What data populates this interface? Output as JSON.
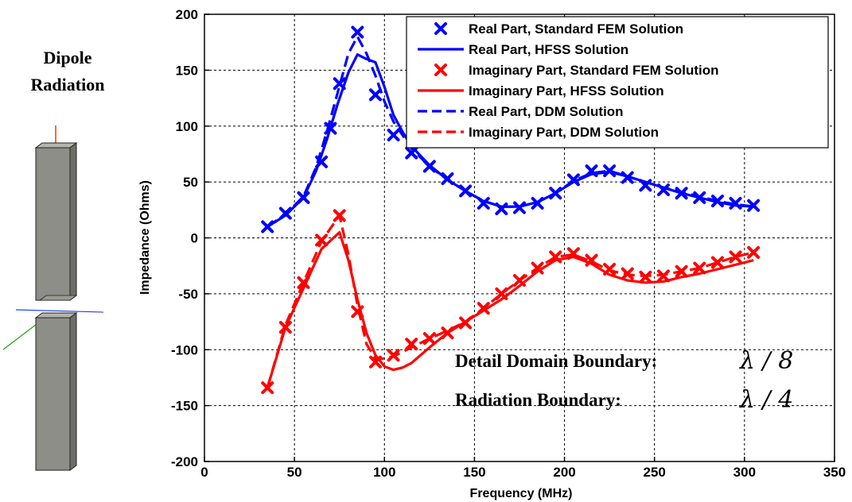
{
  "side_panel": {
    "title_line1": "Dipole",
    "title_line2": "Radiation"
  },
  "annotations": {
    "detail_label": "Detail Domain Boundary:",
    "detail_value": "λ / 8",
    "radiation_label": "Radiation Boundary:",
    "radiation_value": "λ / 4"
  },
  "chart_data": {
    "type": "line",
    "title": "",
    "xlabel": "Frequency (MHz)",
    "ylabel": "Impedance (Ohms)",
    "xlim": [
      0,
      350
    ],
    "ylim": [
      -200,
      200
    ],
    "xticks": [
      0,
      50,
      100,
      150,
      200,
      250,
      300,
      350
    ],
    "yticks": [
      -200,
      -150,
      -100,
      -50,
      0,
      50,
      100,
      150,
      200
    ],
    "grid": true,
    "legend_position": "top-right",
    "series": [
      {
        "name": "Real Part, Standard FEM Solution",
        "color": "#0000ff",
        "style": "markers",
        "marker": "x",
        "x": [
          35,
          45,
          55,
          65,
          70,
          75,
          85,
          95,
          105,
          115,
          125,
          135,
          145,
          155,
          165,
          175,
          185,
          195,
          205,
          215,
          225,
          235,
          245,
          255,
          265,
          275,
          285,
          295,
          305
        ],
        "y": [
          10,
          22,
          36,
          68,
          98,
          138,
          184,
          128,
          92,
          76,
          64,
          53,
          42,
          31,
          26,
          27,
          31,
          40,
          52,
          60,
          60,
          54,
          47,
          43,
          40,
          36,
          33,
          31,
          29
        ]
      },
      {
        "name": "Real Part, HFSS Solution",
        "color": "#0000ff",
        "style": "solid",
        "x": [
          35,
          45,
          55,
          62,
          68,
          74,
          80,
          85,
          90,
          95,
          100,
          105,
          110,
          115,
          125,
          135,
          145,
          155,
          165,
          175,
          185,
          195,
          205,
          215,
          225,
          235,
          245,
          255,
          265,
          275,
          285,
          295,
          305
        ],
        "y": [
          10,
          20,
          36,
          60,
          88,
          120,
          148,
          164,
          160,
          157,
          135,
          110,
          95,
          82,
          65,
          52,
          42,
          33,
          28,
          28,
          32,
          40,
          50,
          57,
          59,
          55,
          50,
          45,
          40,
          36,
          32,
          29,
          28
        ]
      },
      {
        "name": "Imaginary Part, Standard FEM Solution",
        "color": "#ff0000",
        "style": "markers",
        "marker": "x",
        "x": [
          35,
          45,
          55,
          65,
          75,
          85,
          95,
          105,
          115,
          125,
          135,
          145,
          155,
          165,
          175,
          185,
          195,
          205,
          215,
          225,
          235,
          245,
          255,
          265,
          275,
          285,
          295,
          305
        ],
        "y": [
          -134,
          -80,
          -40,
          -2,
          20,
          -66,
          -111,
          -105,
          -95,
          -90,
          -85,
          -76,
          -63,
          -50,
          -38,
          -27,
          -17,
          -14,
          -20,
          -28,
          -32,
          -35,
          -34,
          -30,
          -27,
          -22,
          -17,
          -13
        ]
      },
      {
        "name": "Imaginary Part, HFSS Solution",
        "color": "#ff0000",
        "style": "solid",
        "x": [
          35,
          45,
          55,
          65,
          75,
          80,
          85,
          90,
          95,
          100,
          105,
          110,
          115,
          125,
          135,
          145,
          155,
          165,
          175,
          185,
          195,
          205,
          215,
          225,
          235,
          245,
          255,
          265,
          275,
          285,
          295,
          305
        ],
        "y": [
          -134,
          -80,
          -45,
          -10,
          5,
          -20,
          -55,
          -85,
          -105,
          -115,
          -118,
          -116,
          -112,
          -98,
          -85,
          -75,
          -65,
          -55,
          -43,
          -30,
          -20,
          -17,
          -23,
          -33,
          -38,
          -40,
          -39,
          -35,
          -32,
          -28,
          -24,
          -20
        ]
      },
      {
        "name": "Real Part, DDM Solution",
        "color": "#0000ff",
        "style": "dashed",
        "x": [
          35,
          45,
          55,
          62,
          68,
          74,
          80,
          85,
          90,
          95,
          100,
          105,
          110,
          115,
          125,
          135,
          145,
          155,
          165,
          175,
          185,
          195,
          205,
          215,
          225,
          235,
          245,
          255,
          265,
          275,
          285,
          295,
          305
        ],
        "y": [
          10,
          21,
          37,
          63,
          95,
          130,
          165,
          180,
          165,
          145,
          122,
          104,
          92,
          80,
          64,
          52,
          42,
          33,
          28,
          28,
          32,
          40,
          51,
          58,
          60,
          55,
          50,
          45,
          41,
          37,
          33,
          30,
          28
        ]
      },
      {
        "name": "Imaginary Part, DDM Solution",
        "color": "#ff0000",
        "style": "dashed",
        "x": [
          35,
          45,
          55,
          65,
          75,
          80,
          85,
          90,
          95,
          100,
          105,
          115,
          125,
          135,
          145,
          155,
          165,
          175,
          185,
          195,
          205,
          215,
          225,
          235,
          245,
          255,
          265,
          275,
          285,
          295,
          305
        ],
        "y": [
          -134,
          -78,
          -40,
          -3,
          20,
          -15,
          -60,
          -95,
          -108,
          -108,
          -106,
          -98,
          -90,
          -83,
          -75,
          -63,
          -50,
          -38,
          -27,
          -17,
          -15,
          -21,
          -29,
          -33,
          -34,
          -33,
          -30,
          -27,
          -22,
          -17,
          -13
        ]
      }
    ]
  }
}
